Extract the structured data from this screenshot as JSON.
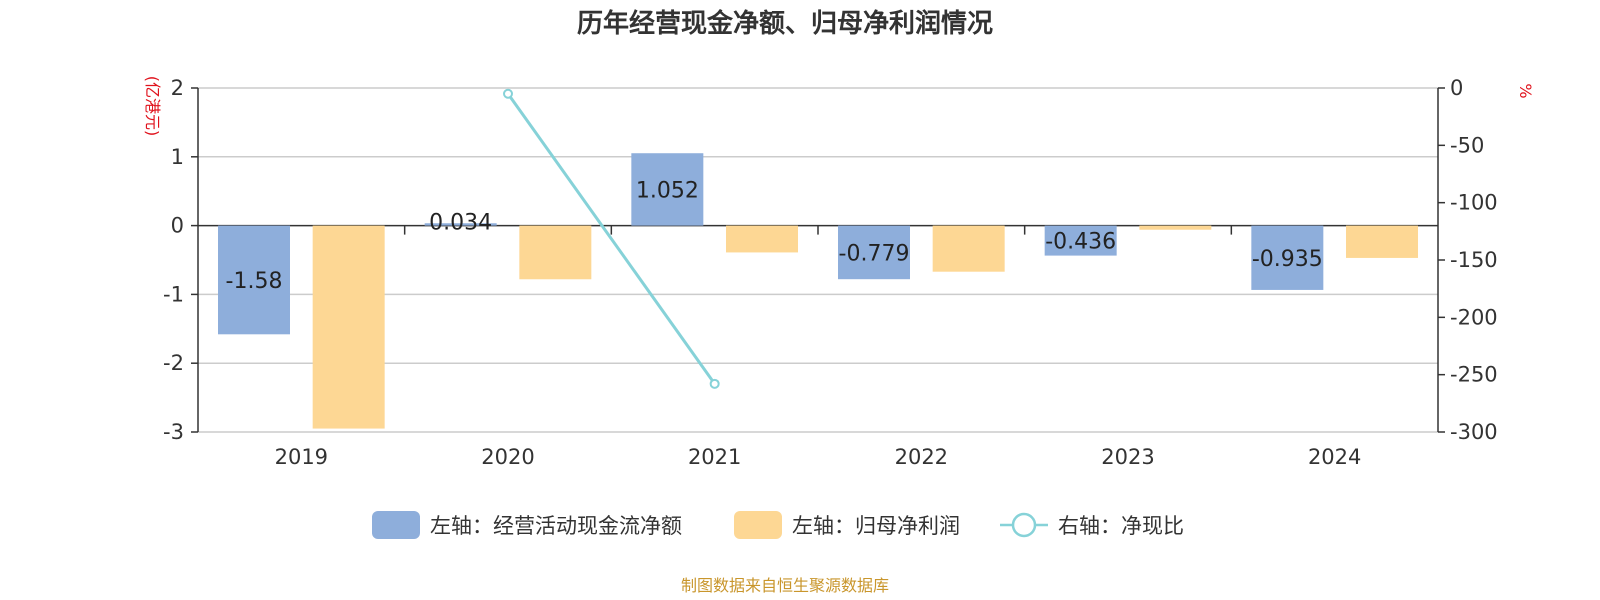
{
  "colors": {
    "cash_flow": "#8eaedb",
    "net_profit": "#fdd794",
    "ratio": "#86d2d8",
    "unit_text": "#e0121c",
    "source_text": "#c9962c",
    "axis": "#333333",
    "grid": "#cccccc"
  },
  "chart_data": {
    "type": "bar",
    "title": "历年经营现金净额、归母净利润情况",
    "categories": [
      "2019",
      "2020",
      "2021",
      "2022",
      "2023",
      "2024"
    ],
    "left_axis": {
      "unit": "(亿港元)",
      "ylim": [
        -3,
        2
      ],
      "ticks": [
        2,
        1,
        0,
        -1,
        -2,
        -3
      ],
      "tick_labels": [
        "2",
        "1",
        "0",
        "-1",
        "-2",
        "-3"
      ]
    },
    "right_axis": {
      "unit": "%",
      "ylim": [
        -300,
        0
      ],
      "ticks": [
        0,
        -50,
        -100,
        -150,
        -200,
        -250,
        -300
      ],
      "tick_labels": [
        "0",
        "-50",
        "-100",
        "-150",
        "-200",
        "-250",
        "-300"
      ]
    },
    "series": [
      {
        "name": "左轴：经营活动现金流净额",
        "axis": "left",
        "kind": "bar",
        "values": [
          -1.58,
          0.034,
          1.052,
          -0.779,
          -0.436,
          -0.935
        ],
        "labels": [
          "-1.58",
          "0.034",
          "1.052",
          "-0.779",
          "-0.436",
          "-0.935"
        ]
      },
      {
        "name": "左轴：归母净利润",
        "axis": "left",
        "kind": "bar",
        "values": [
          -2.95,
          -0.78,
          -0.39,
          -0.67,
          -0.06,
          -0.47
        ]
      },
      {
        "name": "右轴：净现比",
        "axis": "right",
        "kind": "line",
        "values": [
          null,
          -5,
          -258,
          null,
          null,
          null
        ]
      }
    ],
    "grid": true,
    "legend_position": "bottom-center"
  },
  "footer": {
    "source": "制图数据来自恒生聚源数据库"
  }
}
